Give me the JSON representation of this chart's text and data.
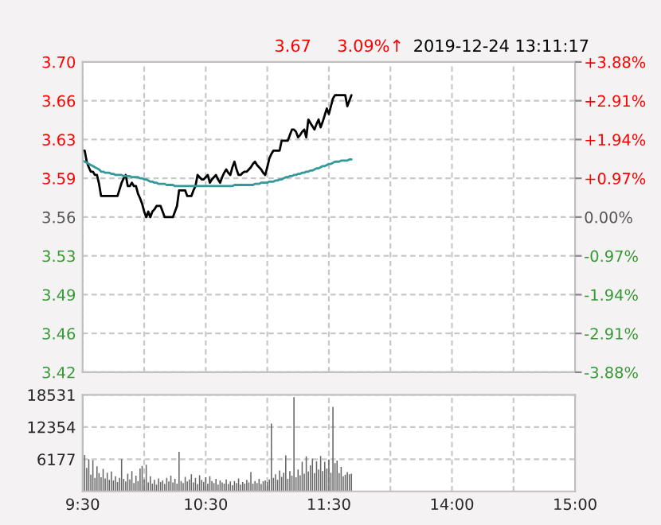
{
  "chart_data": [
    {
      "type": "line",
      "annotations": [
        "3.67",
        "3.09%↑",
        "2019-12-24 13:11:17"
      ],
      "categories": [
        null,
        null,
        null,
        null,
        null,
        null,
        null,
        null,
        null,
        null,
        null,
        null,
        null,
        null,
        null,
        null,
        null,
        null,
        null,
        null,
        null,
        null,
        null,
        null,
        null,
        null,
        null,
        null,
        null,
        null,
        null,
        null,
        null,
        null,
        null,
        null,
        null,
        null,
        null,
        null,
        null,
        null,
        null,
        null,
        null,
        null,
        null,
        null,
        null,
        null,
        null,
        null,
        null,
        null,
        null,
        null,
        null,
        null,
        null,
        null,
        null,
        null,
        null,
        null,
        null,
        null,
        null,
        null,
        null,
        null,
        null,
        null,
        null,
        null,
        null,
        null,
        null,
        null,
        null,
        null,
        null,
        null,
        null,
        null,
        null,
        null,
        null,
        null,
        null,
        null,
        null,
        null,
        null,
        null,
        null,
        null,
        null,
        null,
        null,
        null,
        null,
        null,
        null,
        null,
        null,
        null,
        null,
        null,
        null,
        null,
        null,
        null,
        null,
        null,
        null,
        null,
        null,
        null,
        null,
        null,
        null,
        null,
        null,
        null,
        null,
        null,
        null,
        null,
        null,
        null,
        null,
        null,
        null,
        null,
        null,
        null,
        null,
        null,
        null,
        null,
        null,
        null,
        null,
        null,
        null,
        null,
        null,
        null,
        null,
        null,
        null,
        null,
        null,
        null,
        null,
        null,
        null,
        null,
        null,
        null,
        null,
        null,
        null,
        null,
        null,
        null,
        null,
        null,
        null,
        null,
        null,
        null,
        null,
        null,
        null,
        null,
        null,
        null,
        null,
        null,
        null,
        null,
        null,
        null,
        null,
        null,
        null,
        null,
        null,
        null,
        null,
        null,
        null,
        null,
        null,
        null,
        null,
        null,
        null,
        null,
        null,
        null,
        null,
        null,
        null,
        null,
        null,
        null,
        null,
        null,
        null,
        null,
        null,
        null,
        null,
        null,
        null,
        null,
        null,
        null,
        null,
        null,
        null,
        null,
        null,
        null,
        null,
        null,
        null,
        null,
        null,
        null,
        null,
        null,
        null,
        null,
        null,
        null,
        null,
        null,
        null
      ],
      "series": [
        {
          "color": "#000000",
          "values": [
            3.62,
            3.62,
            3.61,
            3.605,
            3.601,
            3.601,
            3.598,
            3.598,
            3.59,
            3.579,
            3.579,
            3.579,
            3.579,
            3.579,
            3.579,
            3.579,
            3.579,
            3.579,
            3.585,
            3.591,
            3.595,
            3.598,
            3.588,
            3.588,
            3.591,
            3.588,
            3.588,
            3.581,
            3.577,
            3.572,
            3.565,
            3.56,
            3.565,
            3.56,
            3.565,
            3.567,
            3.57,
            3.57,
            3.57,
            3.565,
            3.56,
            3.56,
            3.56,
            3.56,
            3.56,
            3.565,
            3.57,
            3.584,
            3.584,
            3.584,
            3.584,
            3.579,
            3.579,
            3.579,
            3.584,
            3.588,
            3.598,
            3.596,
            3.594,
            3.594,
            3.596,
            3.598,
            3.591,
            3.594,
            3.596,
            3.598,
            3.594,
            3.591,
            3.596,
            3.6,
            3.603,
            3.6,
            3.598,
            3.605,
            3.61,
            3.603,
            3.598,
            3.598,
            3.6,
            3.601,
            3.601,
            3.603,
            3.605,
            3.608,
            3.61,
            3.607,
            3.605,
            3.603,
            3.6,
            3.598,
            3.605,
            3.613,
            3.617,
            3.62,
            3.62,
            3.62,
            3.62,
            3.629,
            3.629,
            3.629,
            3.629,
            3.634,
            3.639,
            3.639,
            3.637,
            3.632,
            3.634,
            3.637,
            3.639,
            3.632,
            3.648,
            3.645,
            3.642,
            3.639,
            3.644,
            3.648,
            3.641,
            3.646,
            3.652,
            3.658,
            3.653,
            3.66,
            3.667,
            3.67,
            3.67,
            3.67,
            3.67,
            3.67,
            3.67,
            3.66,
            3.665,
            3.67,
            null,
            null,
            null,
            null,
            null,
            null,
            null,
            null,
            null,
            null,
            null,
            null,
            null,
            null,
            null,
            null,
            null,
            null,
            null,
            null,
            null,
            null,
            null,
            null,
            null,
            null,
            null,
            null,
            null,
            null,
            null,
            null,
            null,
            null,
            null,
            null,
            null,
            null,
            null,
            null,
            null,
            null,
            null,
            null,
            null,
            null,
            null,
            null,
            null,
            null,
            null,
            null,
            null,
            null,
            null,
            null,
            null,
            null,
            null,
            null,
            null,
            null,
            null,
            null,
            null,
            null,
            null,
            null,
            null,
            null,
            null,
            null,
            null,
            null,
            null,
            null,
            null,
            null,
            null,
            null,
            null,
            null,
            null,
            null,
            null,
            null,
            null,
            null,
            null,
            null,
            null,
            null,
            null,
            null,
            null,
            null,
            null,
            null,
            null,
            null,
            null,
            null,
            null,
            null,
            null,
            null,
            null,
            null,
            null
          ]
        },
        {
          "color": "#339999",
          "values": [
            3.611,
            3.61,
            3.609,
            3.608,
            3.607,
            3.606,
            3.605,
            3.604,
            3.603,
            3.601,
            3.601,
            3.6,
            3.6,
            3.6,
            3.599,
            3.599,
            3.598,
            3.598,
            3.598,
            3.598,
            3.597,
            3.597,
            3.597,
            3.597,
            3.596,
            3.596,
            3.596,
            3.596,
            3.595,
            3.595,
            3.594,
            3.594,
            3.593,
            3.592,
            3.592,
            3.591,
            3.591,
            3.59,
            3.59,
            3.59,
            3.59,
            3.589,
            3.589,
            3.589,
            3.589,
            3.588,
            3.588,
            3.588,
            3.588,
            3.588,
            3.588,
            3.588,
            3.588,
            3.588,
            3.588,
            3.588,
            3.588,
            3.588,
            3.588,
            3.588,
            3.588,
            3.588,
            3.588,
            3.588,
            3.588,
            3.588,
            3.588,
            3.588,
            3.588,
            3.588,
            3.588,
            3.588,
            3.588,
            3.588,
            3.589,
            3.589,
            3.589,
            3.589,
            3.589,
            3.589,
            3.589,
            3.589,
            3.589,
            3.589,
            3.59,
            3.59,
            3.59,
            3.591,
            3.591,
            3.591,
            3.591,
            3.592,
            3.592,
            3.592,
            3.593,
            3.593,
            3.594,
            3.594,
            3.595,
            3.596,
            3.596,
            3.597,
            3.597,
            3.598,
            3.598,
            3.599,
            3.599,
            3.6,
            3.6,
            3.601,
            3.601,
            3.602,
            3.602,
            3.603,
            3.604,
            3.604,
            3.605,
            3.606,
            3.606,
            3.607,
            3.608,
            3.608,
            3.609,
            3.61,
            3.61,
            3.61,
            3.611,
            3.611,
            3.611,
            3.611,
            3.612,
            3.612,
            null,
            null,
            null,
            null,
            null,
            null,
            null,
            null,
            null,
            null,
            null,
            null,
            null,
            null,
            null,
            null,
            null,
            null,
            null,
            null,
            null,
            null,
            null,
            null,
            null,
            null,
            null,
            null,
            null,
            null,
            null,
            null,
            null,
            null,
            null,
            null,
            null,
            null,
            null,
            null,
            null,
            null,
            null,
            null,
            null,
            null,
            null,
            null,
            null,
            null,
            null,
            null,
            null,
            null,
            null,
            null,
            null,
            null,
            null,
            null,
            null,
            null,
            null,
            null,
            null,
            null,
            null,
            null,
            null,
            null,
            null,
            null,
            null,
            null,
            null,
            null,
            null,
            null,
            null,
            null,
            null,
            null,
            null,
            null,
            null,
            null,
            null,
            null,
            null,
            null,
            null,
            null,
            null,
            null,
            null,
            null,
            null,
            null,
            null,
            null,
            null,
            null,
            null,
            null,
            null,
            null,
            null,
            null,
            null
          ]
        }
      ],
      "ylim": [
        3.42,
        3.7
      ],
      "yticks": [
        {
          "value": 3.42,
          "label": "3.42"
        },
        {
          "value": 3.455,
          "label": "3.46"
        },
        {
          "value": 3.49,
          "label": "3.49"
        },
        {
          "value": 3.525,
          "label": "3.53"
        },
        {
          "value": 3.56,
          "label": "3.56"
        },
        {
          "value": 3.595,
          "label": "3.59"
        },
        {
          "value": 3.63,
          "label": "3.63"
        },
        {
          "value": 3.665,
          "label": "3.66"
        },
        {
          "value": 3.7,
          "label": "3.70"
        }
      ],
      "y2lim": [
        -3.88,
        3.88
      ],
      "y2ticks": [
        {
          "value": -3.88,
          "label": "-3.88%"
        },
        {
          "value": -2.91,
          "label": "-2.91%"
        },
        {
          "value": -1.94,
          "label": "-1.94%"
        },
        {
          "value": -0.97,
          "label": "-0.97%"
        },
        {
          "value": 0,
          "label": "0.00%"
        },
        {
          "value": 0.97,
          "label": "+0.97%"
        },
        {
          "value": 1.94,
          "label": "+1.94%"
        },
        {
          "value": 2.91,
          "label": "+2.91%"
        },
        {
          "value": 3.88,
          "label": "+3.88%"
        }
      ],
      "grid": true,
      "tick_labels": "y"
    },
    {
      "type": "bar",
      "categories": [
        "9:30",
        null,
        null,
        null,
        null,
        null,
        null,
        null,
        null,
        null,
        null,
        null,
        null,
        null,
        null,
        null,
        null,
        null,
        null,
        null,
        null,
        null,
        null,
        null,
        null,
        null,
        null,
        null,
        null,
        null,
        null,
        null,
        null,
        null,
        null,
        null,
        null,
        null,
        null,
        null,
        null,
        null,
        null,
        null,
        null,
        null,
        null,
        null,
        null,
        null,
        null,
        null,
        null,
        null,
        null,
        null,
        null,
        null,
        null,
        null,
        "10:30",
        null,
        null,
        null,
        null,
        null,
        null,
        null,
        null,
        null,
        null,
        null,
        null,
        null,
        null,
        null,
        null,
        null,
        null,
        null,
        null,
        null,
        null,
        null,
        null,
        null,
        null,
        null,
        null,
        null,
        null,
        null,
        null,
        null,
        null,
        null,
        null,
        null,
        null,
        null,
        null,
        null,
        null,
        null,
        null,
        null,
        null,
        null,
        null,
        null,
        null,
        null,
        null,
        null,
        null,
        null,
        null,
        null,
        null,
        null,
        "11:30",
        null,
        null,
        null,
        null,
        null,
        null,
        null,
        null,
        null,
        null,
        null,
        null,
        null,
        null,
        null,
        null,
        null,
        null,
        null,
        null,
        null,
        null,
        null,
        null,
        null,
        null,
        null,
        null,
        null,
        null,
        null,
        null,
        null,
        null,
        null,
        null,
        null,
        null,
        null,
        null,
        null,
        null,
        null,
        null,
        null,
        null,
        null,
        null,
        null,
        null,
        null,
        null,
        null,
        null,
        null,
        null,
        null,
        null,
        null,
        "14:00",
        null,
        null,
        null,
        null,
        null,
        null,
        null,
        null,
        null,
        null,
        null,
        null,
        null,
        null,
        null,
        null,
        null,
        null,
        null,
        null,
        null,
        null,
        null,
        null,
        null,
        null,
        null,
        null,
        null,
        null,
        null,
        null,
        null,
        null,
        null,
        null,
        null,
        null,
        null,
        null,
        null,
        null,
        null,
        null,
        null,
        null,
        null,
        null,
        null,
        null,
        null,
        null,
        null,
        null,
        null,
        null,
        null,
        null,
        null,
        "15:00"
      ],
      "series": [
        {
          "color": "#666666",
          "values": [
            18400,
            7000,
            4500,
            6200,
            3200,
            6000,
            2600,
            4800,
            3500,
            2700,
            4300,
            2500,
            3600,
            2200,
            3800,
            2100,
            2900,
            1800,
            2600,
            6200,
            2400,
            1900,
            3400,
            2300,
            3900,
            1600,
            3000,
            2000,
            4400,
            4900,
            2300,
            5100,
            1700,
            2900,
            1500,
            2200,
            1300,
            2500,
            1800,
            2100,
            1400,
            2600,
            1900,
            3000,
            1700,
            2400,
            1500,
            7600,
            2000,
            1600,
            2800,
            1900,
            2300,
            3300,
            1700,
            2600,
            1400,
            3100,
            2200,
            1800,
            2700,
            1500,
            2900,
            2000,
            1600,
            2400,
            1300,
            2100,
            1700,
            1500,
            2300,
            1400,
            1900,
            1200,
            2000,
            1600,
            2500,
            1300,
            1800,
            1500,
            2200,
            1700,
            3700,
            1500,
            2000,
            1600,
            2400,
            1400,
            1900,
            2100,
            1800,
            2300,
            13000,
            2600,
            3300,
            2200,
            4000,
            2800,
            3600,
            6900,
            2400,
            3900,
            3000,
            18100,
            2700,
            4200,
            3100,
            5700,
            3400,
            6700,
            3800,
            5000,
            6300,
            3500,
            5800,
            4200,
            6800,
            3900,
            5700,
            4400,
            6100,
            3600,
            16200,
            5400,
            5900,
            3500,
            4700,
            2900,
            3200,
            3700,
            3300,
            3400,
            null,
            null,
            null,
            null,
            null,
            null,
            null,
            null,
            null,
            null,
            null,
            null,
            null,
            null,
            null,
            null,
            null,
            null,
            null,
            null,
            null,
            null,
            null,
            null,
            null,
            null,
            null,
            null,
            null,
            null,
            null,
            null,
            null,
            null,
            null,
            null,
            null,
            null,
            null,
            null,
            null,
            null,
            null,
            null,
            null,
            null,
            null,
            null,
            null,
            null,
            null,
            null,
            null,
            null,
            null,
            null,
            null,
            null,
            null,
            null,
            null,
            null,
            null,
            null,
            null,
            null,
            null,
            null,
            null,
            null,
            null,
            null,
            null,
            null,
            null,
            null,
            null,
            null,
            null,
            null,
            null,
            null,
            null,
            null,
            null,
            null,
            null,
            null,
            null,
            null,
            null,
            null,
            null,
            null,
            null,
            null,
            null,
            null,
            null,
            null,
            null,
            null,
            null,
            null,
            null,
            null,
            null,
            null,
            null
          ]
        }
      ],
      "ylim": [
        0,
        18531
      ],
      "yticks": [
        6177,
        12354,
        18531
      ],
      "grid": true
    }
  ]
}
